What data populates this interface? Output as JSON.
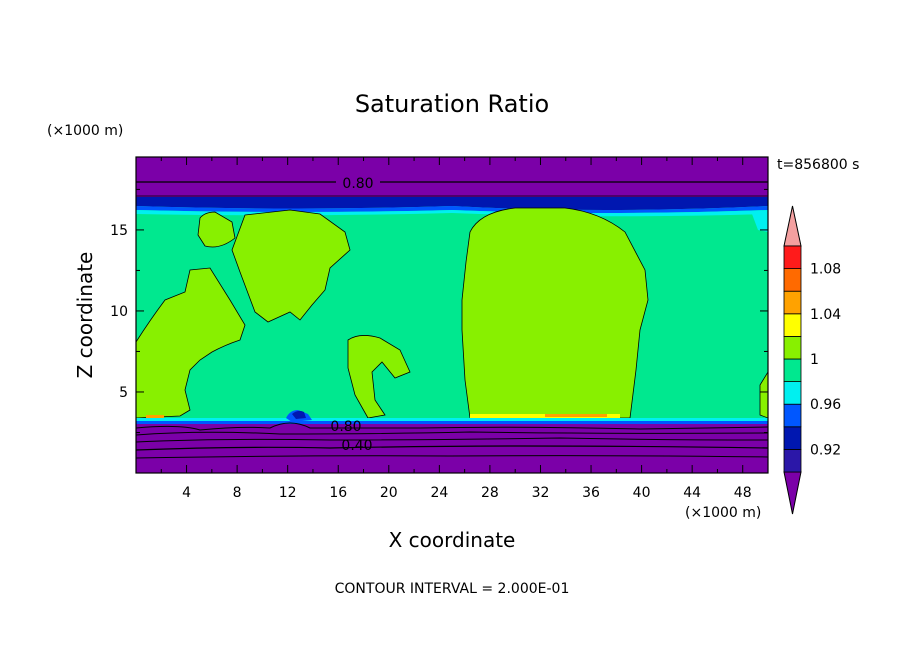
{
  "chart_data": {
    "type": "contour",
    "title": "Saturation Ratio",
    "xlabel": "X coordinate",
    "ylabel": "Z coordinate",
    "x_unit_label": "(×1000 m)",
    "z_unit_label": "(×1000 m)",
    "time_label": "t=856800 s",
    "footer": "CONTOUR INTERVAL = 2.000E-01",
    "xlim": [
      0,
      50
    ],
    "ylim": [
      0,
      19.5
    ],
    "x_ticks": [
      "4",
      "8",
      "12",
      "16",
      "20",
      "24",
      "28",
      "32",
      "36",
      "40",
      "44",
      "48"
    ],
    "y_ticks": [
      "5",
      "10",
      "15"
    ],
    "contour_labels": [
      "0.80",
      "0.80",
      "0.40"
    ],
    "colorbar": {
      "tick_labels": [
        "1.08",
        "1.04",
        "1",
        "0.96",
        "0.92"
      ],
      "levels": [
        {
          "range": "<0.90",
          "color": "#7b00a8"
        },
        {
          "range": "0.90-0.92",
          "color": "#2b17a8"
        },
        {
          "range": "0.92-0.94",
          "color": "#0017b0"
        },
        {
          "range": "0.94-0.96",
          "color": "#0057ff"
        },
        {
          "range": "0.96-0.98",
          "color": "#00f0f0"
        },
        {
          "range": "0.98-1.00",
          "color": "#00e88f"
        },
        {
          "range": "1.00-1.02",
          "color": "#88f000"
        },
        {
          "range": "1.02-1.04",
          "color": "#ffff00"
        },
        {
          "range": "1.04-1.06",
          "color": "#ffa200"
        },
        {
          "range": "1.06-1.08",
          "color": "#ff6a00"
        },
        {
          "range": "1.08-1.10",
          "color": "#ff1b1b"
        },
        {
          "range": ">1.10",
          "color": "#f4a0a0"
        }
      ]
    },
    "colors": {
      "purple": "#7b00a8",
      "navy": "#0017b0",
      "blue": "#0057ff",
      "cyan": "#00f0f0",
      "teal": "#00e88f",
      "lime": "#88f000",
      "yellow": "#ffff00",
      "orange": "#ffa200",
      "red": "#ff1b1b"
    }
  }
}
